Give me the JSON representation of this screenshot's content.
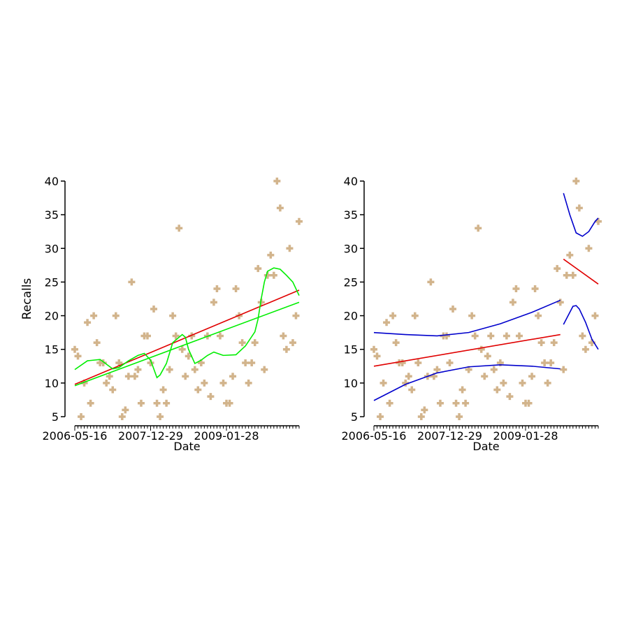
{
  "chart_data": [
    {
      "type": "scatter",
      "xlabel": "Date",
      "ylabel": "Recalls",
      "categories": [
        "2006-05-16",
        null,
        null,
        null,
        null,
        null,
        null,
        null,
        null,
        null,
        null,
        null,
        null,
        null,
        null,
        null,
        null,
        null,
        null,
        null,
        null,
        null,
        null,
        null,
        "2007-12-29",
        null,
        null,
        null,
        null,
        null,
        null,
        null,
        null,
        null,
        null,
        null,
        null,
        null,
        null,
        null,
        null,
        null,
        null,
        null,
        null,
        null,
        null,
        null,
        "2009-01-28",
        null,
        null,
        null,
        null,
        null,
        null,
        null,
        null,
        null,
        null,
        null,
        null,
        null,
        null,
        null,
        null,
        null,
        null,
        null,
        null,
        null,
        null,
        null
      ],
      "ylim": [
        5,
        40
      ],
      "yticks": [
        5,
        10,
        15,
        20,
        25,
        30,
        35,
        40
      ],
      "series": [
        {
          "color": "#d2b48c",
          "marker": "plus",
          "values": [
            15,
            14,
            5,
            10,
            19,
            7,
            20,
            16,
            13,
            13,
            10,
            11,
            9,
            20,
            13,
            5,
            6,
            11,
            25,
            11,
            12,
            7,
            17,
            17,
            13,
            21,
            7,
            5,
            9,
            7,
            12,
            20,
            17,
            33,
            15,
            11,
            14,
            17,
            12,
            9,
            13,
            10,
            17,
            8,
            22,
            24,
            17,
            10,
            7,
            7,
            11,
            24,
            20,
            16,
            13,
            10,
            13,
            16,
            27,
            22,
            12,
            26,
            29,
            26,
            40,
            36,
            17,
            15,
            30,
            16,
            20,
            34
          ]
        }
      ],
      "lines": [
        {
          "color": "#e00000",
          "x": [
            0,
            71
          ],
          "values": [
            9.8,
            23.8
          ]
        },
        {
          "color": "#00ee00",
          "x": [
            0,
            71
          ],
          "values": [
            9.6,
            22
          ]
        },
        {
          "color": "#00ee00",
          "x": [
            0,
            4,
            8,
            12,
            14,
            17,
            20,
            22,
            24,
            26,
            27,
            29,
            31,
            33,
            34,
            35,
            36,
            38,
            40,
            42,
            44,
            47,
            51,
            54,
            57,
            58,
            59,
            60,
            61,
            63,
            65,
            67,
            69,
            71
          ],
          "values": [
            12.0,
            13.3,
            13.5,
            12.1,
            12.3,
            13.3,
            14.1,
            14.4,
            13.4,
            10.8,
            11.2,
            12.9,
            16.0,
            16.8,
            17.2,
            16.8,
            15.0,
            12.9,
            13.4,
            14.1,
            14.6,
            14.1,
            14.2,
            15.5,
            17.6,
            19.5,
            22.5,
            25.0,
            26.6,
            27.1,
            26.9,
            26.0,
            25.0,
            23.0
          ]
        }
      ]
    },
    {
      "type": "scatter",
      "xlabel": "Date",
      "categories": [
        "2006-05-16",
        null,
        null,
        null,
        null,
        null,
        null,
        null,
        null,
        null,
        null,
        null,
        null,
        null,
        null,
        null,
        null,
        null,
        null,
        null,
        null,
        null,
        null,
        null,
        "2007-12-29",
        null,
        null,
        null,
        null,
        null,
        null,
        null,
        null,
        null,
        null,
        null,
        null,
        null,
        null,
        null,
        null,
        null,
        null,
        null,
        null,
        null,
        null,
        null,
        "2009-01-28",
        null,
        null,
        null,
        null,
        null,
        null,
        null,
        null,
        null,
        null,
        null,
        null,
        null,
        null,
        null,
        null,
        null,
        null,
        null,
        null,
        null,
        null,
        null
      ],
      "ylim": [
        5,
        40
      ],
      "yticks": [
        5,
        10,
        15,
        20,
        25,
        30,
        35,
        40
      ],
      "series": [
        {
          "color": "#d2b48c",
          "marker": "plus",
          "values": [
            15,
            14,
            5,
            10,
            19,
            7,
            20,
            16,
            13,
            13,
            10,
            11,
            9,
            20,
            13,
            5,
            6,
            11,
            25,
            11,
            12,
            7,
            17,
            17,
            13,
            21,
            7,
            5,
            9,
            7,
            12,
            20,
            17,
            33,
            15,
            11,
            14,
            17,
            12,
            9,
            13,
            10,
            17,
            8,
            22,
            24,
            17,
            10,
            7,
            7,
            11,
            24,
            20,
            16,
            13,
            10,
            13,
            16,
            27,
            22,
            12,
            26,
            29,
            26,
            40,
            36,
            17,
            15,
            30,
            16,
            20,
            34
          ]
        }
      ],
      "lines": [
        {
          "color": "#e00000",
          "x": [
            0,
            59
          ],
          "values": [
            12.5,
            17.2
          ]
        },
        {
          "color": "#0000cc",
          "x": [
            0,
            10,
            20,
            30,
            40,
            50,
            59
          ],
          "values": [
            17.5,
            17.2,
            17.0,
            17.5,
            18.8,
            20.5,
            22.3
          ]
        },
        {
          "color": "#0000cc",
          "x": [
            0,
            10,
            20,
            30,
            40,
            50,
            59
          ],
          "values": [
            7.4,
            9.8,
            11.5,
            12.4,
            12.7,
            12.5,
            12.1
          ]
        },
        {
          "color": "#e00000",
          "x": [
            60,
            71
          ],
          "values": [
            28.4,
            24.7
          ]
        },
        {
          "color": "#0000cc",
          "x": [
            60,
            62,
            64,
            66,
            68,
            70,
            71
          ],
          "values": [
            38.2,
            35,
            32.3,
            31.8,
            32.5,
            34.0,
            34.5
          ]
        },
        {
          "color": "#0000cc",
          "x": [
            60,
            62,
            63,
            64,
            65,
            67,
            69,
            71
          ],
          "values": [
            18.7,
            20.5,
            21.4,
            21.5,
            21.0,
            19.0,
            16.5,
            15.0
          ]
        }
      ]
    }
  ]
}
